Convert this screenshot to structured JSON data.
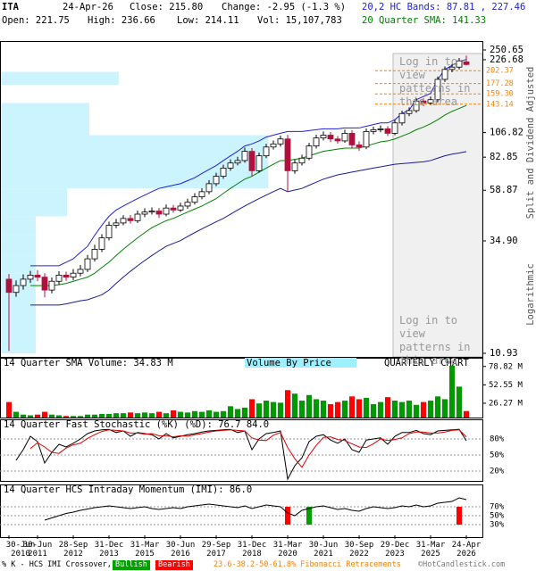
{
  "header": {
    "symbol": "ITA",
    "date": "24-Apr-26",
    "close": "Close: 215.80",
    "change": "Change: -2.95 (-1.3 %)",
    "open": "Open: 221.75",
    "high": "High: 236.66",
    "low": "Low: 214.11",
    "vol": "Vol: 15,107,783",
    "bands": "20,2 HC Bands: 87.81 , 227.46",
    "sma": "20 Quarter SMA: 141.33"
  },
  "chart_data": [
    {
      "type": "candlestick",
      "categories": [
        "30-Jun 2010",
        null,
        null,
        null,
        "30-Jun 2011",
        null,
        null,
        null,
        null,
        "28-Sep 2012",
        null,
        null,
        null,
        null,
        "31-Dec 2013",
        null,
        null,
        null,
        null,
        "31-Mar 2015",
        null,
        null,
        null,
        null,
        "30-Jun 2016",
        null,
        null,
        null,
        null,
        "29-Sep 2017",
        null,
        null,
        null,
        null,
        "31-Dec 2018",
        null,
        null,
        null,
        null,
        "31-Mar 2020",
        null,
        null,
        null,
        null,
        "30-Jun 2021",
        null,
        null,
        null,
        null,
        "30-Sep 2022",
        null,
        null,
        null,
        null,
        "29-Dec 2023",
        null,
        null,
        null,
        null,
        "31-Mar 2025",
        null,
        null,
        null,
        null,
        "24-Apr 2026"
      ],
      "open": [
        23.5,
        20.5,
        22,
        23.5,
        24.5,
        24,
        21,
        23,
        24.5,
        24,
        25,
        26,
        29,
        32,
        36,
        41,
        42,
        44,
        43,
        46,
        47,
        47.5,
        46,
        49,
        48,
        50,
        52,
        55,
        58,
        63,
        68,
        74,
        78,
        80,
        88,
        72,
        84,
        92,
        95,
        100,
        72,
        78,
        82,
        93,
        101,
        104,
        100,
        98,
        106,
        94,
        92,
        108,
        110,
        111,
        106,
        118,
        130,
        134,
        148,
        145,
        150,
        185,
        205,
        210,
        221.75
      ],
      "high": [
        24.8,
        23.2,
        24.7,
        25.6,
        25.8,
        25,
        23.9,
        25.5,
        25.4,
        26.1,
        27.2,
        30.2,
        33.5,
        37.4,
        42.6,
        43.8,
        45.5,
        45.6,
        47.7,
        48.9,
        49.3,
        49,
        50.8,
        50.6,
        51.8,
        54,
        57.1,
        60.2,
        65.4,
        70.5,
        76.6,
        81,
        83.2,
        91.5,
        91,
        86.9,
        95.2,
        98.4,
        103.5,
        104.3,
        80.9,
        85,
        96,
        104.5,
        108,
        107.4,
        103.2,
        110,
        109.6,
        97.5,
        111.4,
        113.5,
        115,
        114.2,
        121.7,
        134,
        138.5,
        152.6,
        152,
        155,
        190.4,
        211.3,
        216.5,
        230.7,
        236.66
      ],
      "low": [
        11.2,
        19.6,
        21.1,
        22.6,
        23,
        19.5,
        20.3,
        22.2,
        23.1,
        23.3,
        24.2,
        25.3,
        28.2,
        31.1,
        35.1,
        39.8,
        41,
        41.7,
        42,
        44.6,
        45.8,
        44.2,
        45,
        46.7,
        47,
        48.6,
        50.8,
        53.6,
        56.5,
        61.4,
        66.3,
        72,
        76.1,
        78.2,
        68,
        70.5,
        82,
        89.6,
        92.4,
        58,
        69.8,
        76,
        80.2,
        90.6,
        98.5,
        96.8,
        95.3,
        96.2,
        90.8,
        88.4,
        90,
        105,
        107.2,
        103,
        104,
        115,
        126.5,
        131,
        140.5,
        142,
        146,
        180,
        199,
        205,
        214.11
      ],
      "close": [
        20.5,
        22,
        23.5,
        24.5,
        24,
        21,
        23,
        24.5,
        24,
        25,
        26,
        29,
        32,
        36,
        41,
        42,
        44,
        43,
        46,
        47,
        47.5,
        46,
        49,
        48,
        50,
        52,
        55,
        58,
        63,
        68,
        74,
        78,
        80,
        88,
        72,
        84,
        92,
        95,
        100,
        72,
        78,
        82,
        93,
        101,
        104,
        100,
        98,
        106,
        94,
        92,
        108,
        110,
        111,
        106,
        118,
        130,
        134,
        148,
        145,
        150,
        185,
        205,
        210,
        224,
        215.8
      ],
      "up_color": "#ffffff",
      "down_color": "#b0103c",
      "overlays": [
        {
          "color": "#2020e0",
          "values": [
            null,
            null,
            null,
            27,
            27,
            27,
            27,
            27,
            28,
            29,
            31,
            33,
            37,
            41,
            45,
            48,
            50,
            52,
            54,
            56,
            58,
            60,
            61,
            62,
            63,
            65,
            67,
            70,
            73,
            76,
            80,
            84,
            88,
            93,
            95,
            98,
            102,
            104,
            106,
            108,
            108,
            108,
            109,
            110,
            111,
            111,
            111,
            112,
            112,
            112,
            114,
            116,
            118,
            118,
            122,
            130,
            135,
            150,
            155,
            160,
            185,
            205,
            214,
            222,
            227.46
          ]
        },
        {
          "color": "#1a1a9a",
          "values": [
            null,
            null,
            null,
            18,
            18,
            18,
            18,
            18,
            18.2,
            18.5,
            18.8,
            19,
            19.5,
            20,
            21,
            22.5,
            24,
            25.5,
            27,
            28.5,
            30,
            31.5,
            33,
            34,
            35,
            36.5,
            38,
            39.5,
            41,
            42.5,
            44,
            46,
            48,
            50,
            52,
            54,
            56,
            58,
            60,
            58,
            59,
            60,
            62,
            64,
            66,
            67.5,
            69,
            70,
            71,
            72,
            73,
            74,
            75,
            76,
            77,
            77.5,
            78,
            78.5,
            79,
            80,
            82,
            84,
            85.5,
            86.5,
            87.81
          ]
        },
        {
          "color": "#008000",
          "values": [
            null,
            null,
            null,
            22,
            22,
            22,
            22,
            22.2,
            22.5,
            23,
            23.5,
            24,
            25,
            26.5,
            28,
            30,
            32,
            34,
            36,
            38,
            40,
            41.5,
            43,
            44,
            45.5,
            47,
            48.5,
            50,
            52,
            54,
            57,
            60,
            63,
            66,
            68,
            71,
            74,
            77,
            80,
            80,
            81,
            82,
            84,
            86,
            88,
            89,
            90,
            91,
            91,
            91,
            93,
            95,
            97,
            98,
            100,
            103,
            106,
            110,
            113,
            117,
            122,
            128,
            133,
            137,
            141.33
          ]
        }
      ],
      "log_scale": true,
      "ylim": [
        10.93,
        250.65
      ],
      "yticks": [
        250.65,
        226.68,
        106.82,
        82.85,
        58.87,
        {
          "value": 34.9,
          "label": "34.90"
        },
        10.93
      ],
      "volume_by_price": {
        "bins": [
          10.93,
          20,
          25,
          30,
          37,
          45,
          60,
          80,
          104,
          145,
          175,
          200
        ],
        "values": [
          7.4,
          7.4,
          7.4,
          7.4,
          7.4,
          13.9,
          55.6,
          55.6,
          18.5,
          0,
          24.6
        ],
        "color": "#ccf4ff"
      },
      "fibonacci": {
        "values": [
          202.37,
          177.28,
          159.3,
          143.14
        ],
        "value_labels": [
          "202.37",
          "177.28",
          "159.30",
          "143.14"
        ],
        "color": "#ff8000"
      },
      "notes": [
        "Split and Dividend Adjusted",
        "Logarithmic"
      ],
      "watermark": "Log in to view patterns in this area"
    },
    {
      "type": "bar",
      "title": "14 Quarter SMA Volume: 34.83 M",
      "subtitle": "Volume By Price",
      "annotation": "QUARTERLY CHART",
      "values": [
        28,
        14,
        10,
        9,
        10,
        14,
        10,
        9,
        8,
        8,
        8,
        10,
        10,
        11,
        11,
        12,
        12,
        13,
        12,
        13,
        12,
        14,
        12,
        16,
        14,
        13,
        15,
        14,
        16,
        14,
        15,
        22,
        18,
        20,
        32,
        26,
        30,
        28,
        27,
        45,
        40,
        30,
        38,
        32,
        30,
        25,
        28,
        30,
        36,
        32,
        34,
        25,
        28,
        35,
        30,
        28,
        30,
        24,
        28,
        30,
        36,
        32,
        80,
        50,
        15.11
      ],
      "up_color": "#009900",
      "down_color": "#ff0000",
      "ylim": [
        5.8,
        90
      ],
      "yticks": [
        {
          "value": 78.82,
          "label": "78.82 M"
        },
        {
          "value": 52.55,
          "label": "52.55 M"
        },
        {
          "value": 26.27,
          "label": "26.27 M"
        }
      ]
    },
    {
      "type": "line",
      "title": "14 Quarter Fast Stochastic (%K) (%D): 76.7 84.0",
      "series": [
        {
          "color": "#000000",
          "values": [
            null,
            40,
            60,
            85,
            75,
            35,
            55,
            70,
            65,
            72,
            80,
            90,
            95,
            97,
            98,
            92,
            95,
            85,
            92,
            90,
            88,
            80,
            90,
            82,
            85,
            88,
            90,
            93,
            95,
            96,
            97,
            98,
            92,
            95,
            60,
            80,
            90,
            92,
            95,
            5,
            30,
            45,
            75,
            85,
            88,
            78,
            72,
            80,
            60,
            55,
            78,
            80,
            82,
            70,
            85,
            92,
            92,
            96,
            90,
            88,
            95,
            96,
            97,
            98,
            76.7
          ]
        },
        {
          "color": "#e00000",
          "values": [
            null,
            null,
            null,
            62,
            73,
            65,
            55,
            53,
            63,
            69,
            72,
            81,
            88,
            94,
            97,
            96,
            95,
            91,
            91,
            89,
            90,
            86,
            86,
            84,
            86,
            85,
            88,
            90,
            93,
            95,
            96,
            97,
            96,
            95,
            82,
            78,
            77,
            87,
            92,
            64,
            43,
            27,
            50,
            68,
            83,
            84,
            79,
            77,
            71,
            65,
            64,
            71,
            80,
            77,
            79,
            82,
            90,
            93,
            93,
            91,
            91,
            93,
            96,
            97,
            84
          ]
        }
      ],
      "ylim": [
        0,
        100
      ],
      "yticks": [
        {
          "value": 80,
          "label": "80%"
        },
        {
          "value": 50,
          "label": "50%"
        },
        {
          "value": 20,
          "label": "20%"
        }
      ]
    },
    {
      "type": "line",
      "title": "14 Quarter HCS Intraday Momentum (IMI): 86.0",
      "series": [
        {
          "color": "#000000",
          "values": [
            null,
            null,
            null,
            null,
            null,
            40,
            45,
            50,
            55,
            58,
            62,
            65,
            68,
            70,
            72,
            70,
            68,
            66,
            68,
            70,
            66,
            64,
            66,
            68,
            66,
            70,
            72,
            74,
            76,
            74,
            72,
            70,
            68,
            72,
            66,
            70,
            74,
            72,
            70,
            56,
            50,
            62,
            66,
            70,
            72,
            68,
            64,
            66,
            62,
            60,
            66,
            70,
            68,
            66,
            68,
            72,
            70,
            74,
            70,
            72,
            78,
            80,
            82,
            90,
            86
          ]
        }
      ],
      "signals": {
        "bullish": [
          42
        ],
        "bearish": [
          39,
          63
        ],
        "bullish_color": "#00a000",
        "bearish_color": "#ff0000"
      },
      "ylim": [
        0,
        100
      ],
      "yticks": [
        {
          "value": 70,
          "label": "70%"
        },
        {
          "value": 50,
          "label": "50%"
        },
        {
          "value": 30,
          "label": "30%"
        }
      ]
    }
  ],
  "footer": {
    "legend": "% K - HCS IMI Crossover,",
    "bullish": "Bullish",
    "bearish": "Bearish",
    "fibonacci": "23.6-38.2-50-61.8% Fibonacci Retracements",
    "credit": "©HotCandlestick.com"
  }
}
